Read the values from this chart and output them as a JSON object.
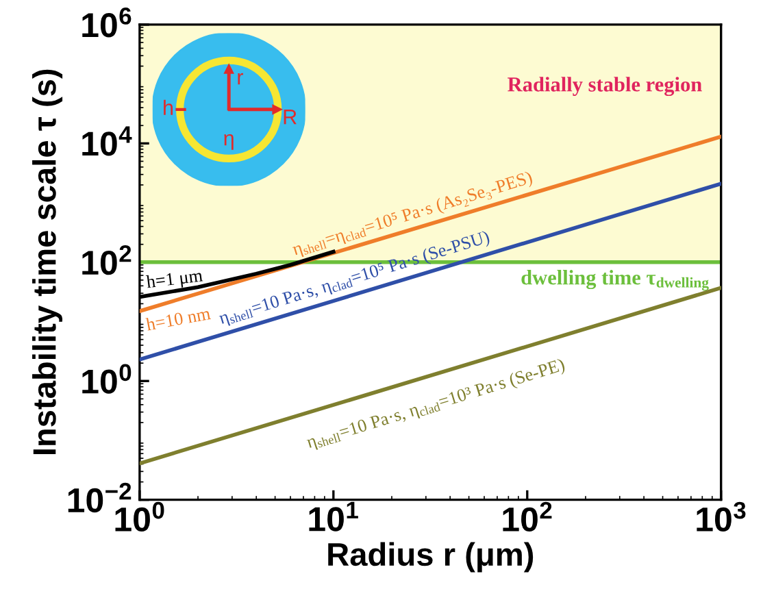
{
  "chart_data": {
    "type": "line",
    "log": "xy",
    "xlabel": "Radius r (μm)",
    "ylabel": "Instability time scale τ (s)",
    "xlim": [
      1,
      1000
    ],
    "ylim": [
      0.01,
      1000000
    ],
    "xticks": [
      {
        "value": 1,
        "label": "10$^{0}$"
      },
      {
        "value": 10,
        "label": "10$^{1}$"
      },
      {
        "value": 100,
        "label": "10$^{2}$"
      },
      {
        "value": 1000,
        "label": "10$^{3}$"
      }
    ],
    "yticks": [
      {
        "value": 0.01,
        "label": "10$^{−2}$"
      },
      {
        "value": 1,
        "label": "10$^{0}$"
      },
      {
        "value": 100,
        "label": "10$^{2}$"
      },
      {
        "value": 10000,
        "label": "10$^{4}$"
      },
      {
        "value": 1000000,
        "label": "10$^{6}$"
      }
    ],
    "grid": false,
    "legend": false,
    "line_style": "solid",
    "series": [
      {
        "color": "#ef7d2a",
        "x": [
          1,
          1000
        ],
        "values": [
          15,
          13000
        ]
      },
      {
        "color": "#000000",
        "x": [
          1,
          2,
          4,
          6,
          10
        ],
        "values": [
          26,
          38,
          64,
          90,
          150
        ]
      },
      {
        "color": "#2f4fa8",
        "x": [
          1,
          1000
        ],
        "values": [
          2.3,
          2100
        ]
      },
      {
        "color": "#7f7f2e",
        "x": [
          1,
          1000
        ],
        "values": [
          0.041,
          37
        ]
      }
    ],
    "bands": [
      {
        "axis": "y",
        "from": 100,
        "to": 1000000,
        "label": "Radially stable region",
        "color": "#fdfbd2"
      }
    ],
    "ref_lines": [
      {
        "axis": "y",
        "value": 100,
        "label": "dwelling time τ$_{dwelling}$",
        "color": "#6cbf3c"
      }
    ],
    "annotations": [
      "r",
      "R",
      "h",
      "η",
      "η$_{shell}$=η$_{clad}$=10⁵ Pa·s (As₂Se₃-PES)",
      "η$_{shell}$=10 Pa·s, η$_{clad}$=10⁵ Pa·s (Se-PSU)",
      "η$_{shell}$=10 Pa·s, η$_{clad}$=10³ Pa·s (Se-PE)",
      "h=1 μm",
      "h=10 nm"
    ]
  }
}
